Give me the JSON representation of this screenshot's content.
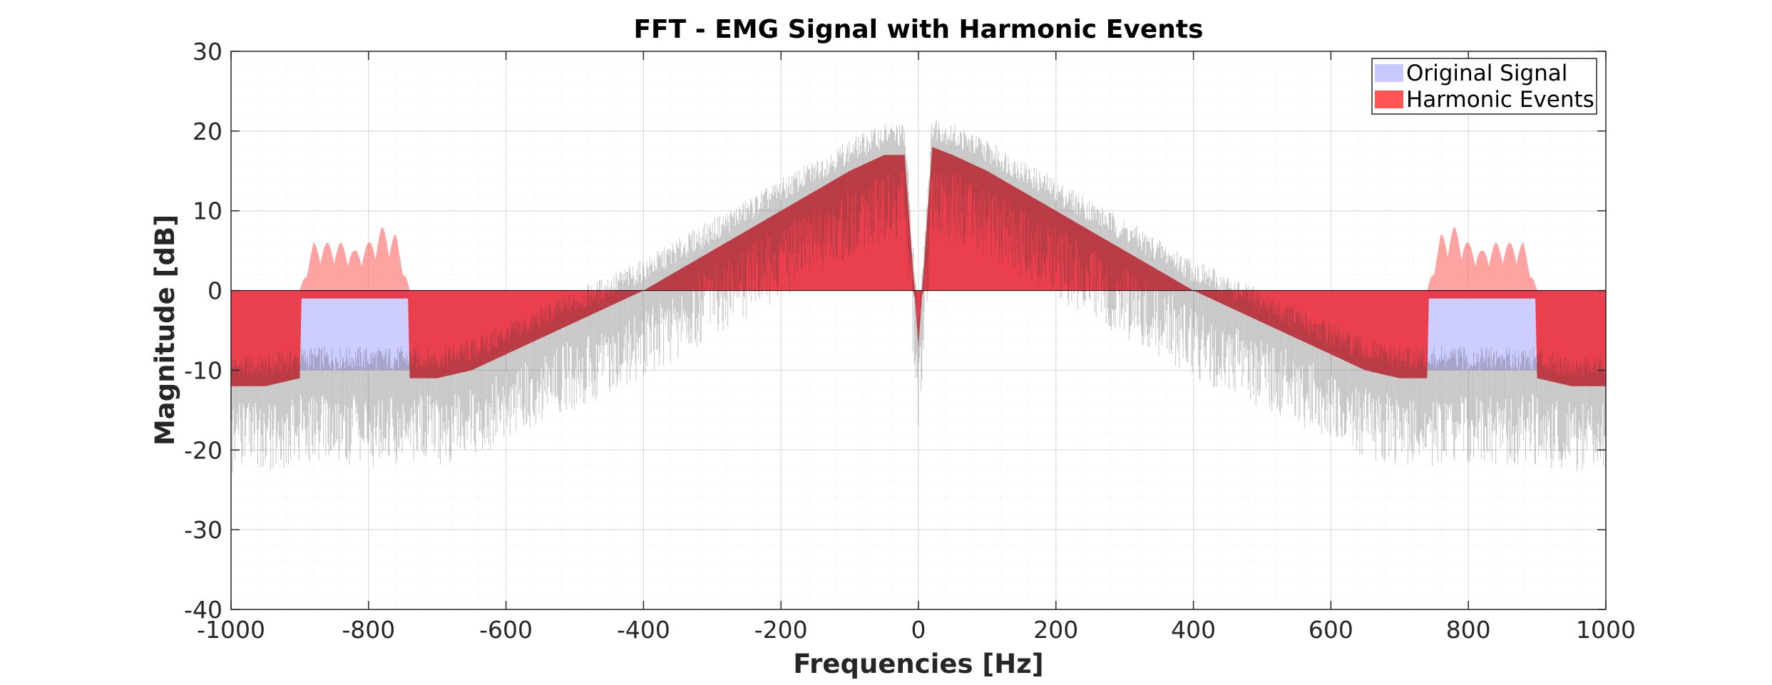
{
  "chart_data": {
    "type": "area",
    "title": "FFT - EMG Signal with Harmonic Events",
    "xlabel": "Frequencies [Hz]",
    "ylabel": "Magnitude [dB]",
    "xlim": [
      -1000,
      1000
    ],
    "ylim": [
      -40,
      30
    ],
    "xticks": [
      -1000,
      -800,
      -600,
      -400,
      -200,
      0,
      200,
      400,
      600,
      800,
      1000
    ],
    "yticks": [
      -40,
      -30,
      -20,
      -10,
      0,
      10,
      20,
      30
    ],
    "grid": "on",
    "legend_position": "top-right",
    "series": [
      {
        "name": "Original Signal",
        "color": "#c8c8ff",
        "x": [
          -1000,
          -950,
          -900,
          -850,
          -800,
          -750,
          -700,
          -650,
          -600,
          -550,
          -500,
          -450,
          -400,
          -350,
          -300,
          -250,
          -200,
          -150,
          -100,
          -50,
          -20,
          0,
          20,
          50,
          100,
          150,
          200,
          250,
          300,
          350,
          400,
          450,
          500,
          550,
          600,
          650,
          700,
          750,
          800,
          850,
          900,
          950,
          1000
        ],
        "y": [
          -12,
          -12,
          -11,
          -11,
          -11,
          -11,
          -11,
          -10,
          -8,
          -6,
          -4,
          -2,
          0,
          2.5,
          5,
          7.5,
          10,
          12.5,
          15,
          17,
          17,
          -7,
          18,
          17,
          15,
          12.5,
          10,
          7.5,
          5,
          2.5,
          0,
          -2,
          -4,
          -6,
          -8,
          -10,
          -11,
          -11,
          -11,
          -11,
          -11,
          -12,
          -12
        ]
      },
      {
        "name": "Harmonic Events",
        "color": "#ff5555",
        "x": [
          -900,
          -880,
          -860,
          -840,
          -820,
          -800,
          -780,
          -760,
          -740,
          740,
          760,
          780,
          800,
          820,
          840,
          860,
          880,
          900
        ],
        "y": [
          0,
          6,
          6,
          6,
          5,
          6,
          8,
          7,
          0,
          0,
          7,
          8,
          6,
          5,
          6,
          6,
          6,
          0
        ]
      }
    ]
  }
}
